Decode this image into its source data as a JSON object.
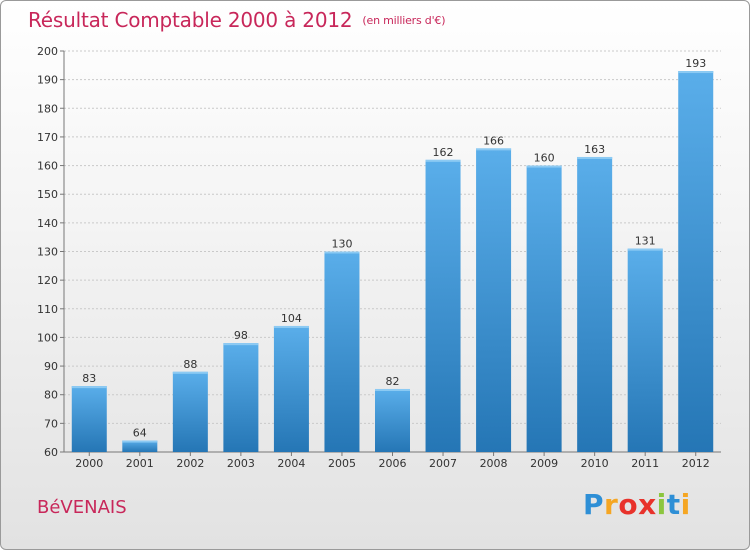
{
  "header": {
    "title": "Résultat Comptable 2000 à 2012",
    "subtitle": "(en milliers d'€)"
  },
  "footer": {
    "commune": "BéVENAIS",
    "logo": {
      "letters": [
        "P",
        "r",
        "o",
        "x",
        "i",
        "t",
        "i"
      ],
      "colors": [
        "#2e8fd6",
        "#f5a623",
        "#e8322b",
        "#e8322b",
        "#8cc63f",
        "#2e8fd6",
        "#f5a623"
      ]
    }
  },
  "colors": {
    "title": "#c8275a",
    "bar_top": "#5aaeea",
    "bar_bottom": "#2576b5"
  },
  "chart_data": {
    "type": "bar",
    "title": "Résultat Comptable 2000 à 2012",
    "subtitle": "(en milliers d'€)",
    "categories": [
      "2000",
      "2001",
      "2002",
      "2003",
      "2004",
      "2005",
      "2006",
      "2007",
      "2008",
      "2009",
      "2010",
      "2011",
      "2012"
    ],
    "values": [
      83,
      64,
      88,
      98,
      104,
      130,
      82,
      162,
      166,
      160,
      163,
      131,
      193
    ],
    "ylim": [
      60,
      200
    ],
    "yticks": [
      60,
      70,
      80,
      90,
      100,
      110,
      120,
      130,
      140,
      150,
      160,
      170,
      180,
      190,
      200
    ],
    "grid": true,
    "data_labels": true
  }
}
